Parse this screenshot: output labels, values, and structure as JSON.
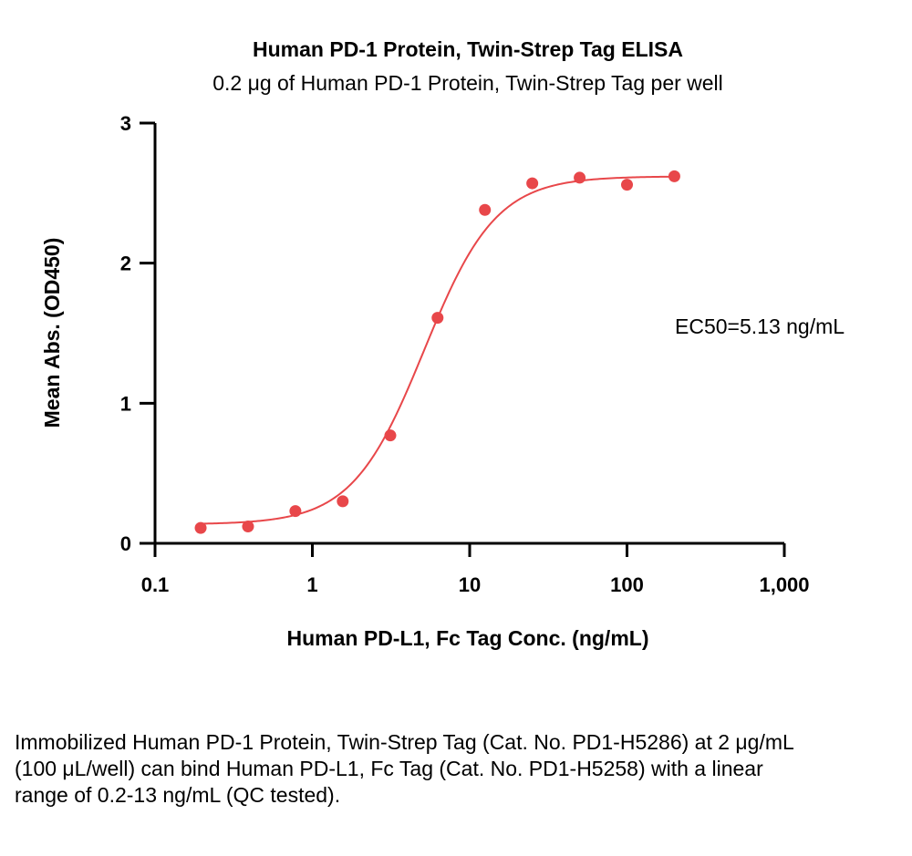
{
  "chart_data": {
    "type": "scatter",
    "title": "Human PD-1 Protein, Twin-Strep Tag ELISA",
    "subtitle": "0.2 μg of Human PD-1 Protein, Twin-Strep Tag per well",
    "xlabel": "Human PD-L1, Fc Tag Conc. (ng/mL)",
    "ylabel": "Mean Abs. (OD450)",
    "x_scale": "log",
    "xlim": [
      0.1,
      1000
    ],
    "ylim": [
      0,
      3
    ],
    "x_ticks": [
      0.1,
      1,
      10,
      100,
      1000
    ],
    "x_tick_labels": [
      "0.1",
      "1",
      "10",
      "100",
      "1,000"
    ],
    "y_ticks": [
      0,
      1,
      2,
      3
    ],
    "y_tick_labels": [
      "0",
      "1",
      "2",
      "3"
    ],
    "grid": false,
    "legend": "none",
    "color": "#e8474a",
    "points": [
      {
        "x": 0.195,
        "y": 0.11
      },
      {
        "x": 0.39,
        "y": 0.12
      },
      {
        "x": 0.78,
        "y": 0.23
      },
      {
        "x": 1.56,
        "y": 0.3
      },
      {
        "x": 3.13,
        "y": 0.77
      },
      {
        "x": 6.25,
        "y": 1.61
      },
      {
        "x": 12.5,
        "y": 2.38
      },
      {
        "x": 25,
        "y": 2.57
      },
      {
        "x": 50,
        "y": 2.61
      },
      {
        "x": 100,
        "y": 2.56
      },
      {
        "x": 200,
        "y": 2.62
      }
    ],
    "fit_curve": {
      "bottom": 0.135,
      "top": 2.62,
      "ec50": 5.13,
      "hill_slope": 1.9,
      "x_range": [
        0.195,
        200
      ]
    },
    "annotation": "EC50=5.13 ng/mL"
  },
  "caption": "Immobilized Human PD-1 Protein, Twin-Strep Tag (Cat. No. PD1-H5286) at 2 μg/mL (100 μL/well) can bind Human PD-L1, Fc Tag (Cat. No. PD1-H5258) with a linear range of 0.2-13 ng/mL (QC tested)."
}
